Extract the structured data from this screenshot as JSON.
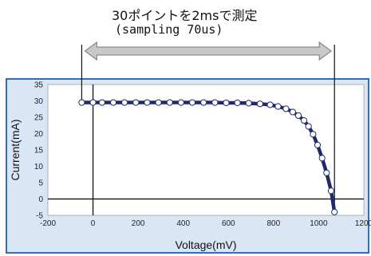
{
  "annotation": {
    "line1": "30ポイントを2msで測定",
    "line2": "(sampling 70us)"
  },
  "colors": {
    "panel_bg": "#d9e6f5",
    "panel_border": "#2e6fb5",
    "curve": "#1f2a6b",
    "marker_fill": "#ffffff",
    "marker_stroke": "#1f2a6b",
    "arrow": "#c8c8c8"
  },
  "chart_data": {
    "type": "scatter",
    "xlabel": "Voltage(mV)",
    "ylabel": "Current(mA)",
    "xlim": [
      -200,
      1200
    ],
    "ylim": [
      -5,
      35
    ],
    "x_ticks": [
      -200,
      0,
      200,
      400,
      600,
      800,
      1000,
      1200
    ],
    "y_ticks": [
      -5,
      0,
      5,
      10,
      15,
      20,
      25,
      30,
      35
    ],
    "grid": false,
    "legend": "none",
    "series": [
      {
        "x": [
          -50,
          0,
          40,
          90,
          140,
          190,
          240,
          290,
          340,
          390,
          440,
          490,
          540,
          590,
          640,
          690,
          740,
          785,
          820,
          855,
          885,
          910,
          935,
          955,
          975,
          995,
          1015,
          1035,
          1055,
          1070
        ],
        "y": [
          29.5,
          29.5,
          29.5,
          29.5,
          29.5,
          29.5,
          29.5,
          29.5,
          29.5,
          29.5,
          29.5,
          29.5,
          29.5,
          29.4,
          29.4,
          29.3,
          29.1,
          28.8,
          28.3,
          27.6,
          26.6,
          25.5,
          24.0,
          22.2,
          19.8,
          16.5,
          12.5,
          8.0,
          2.5,
          -4.0
        ]
      }
    ]
  }
}
